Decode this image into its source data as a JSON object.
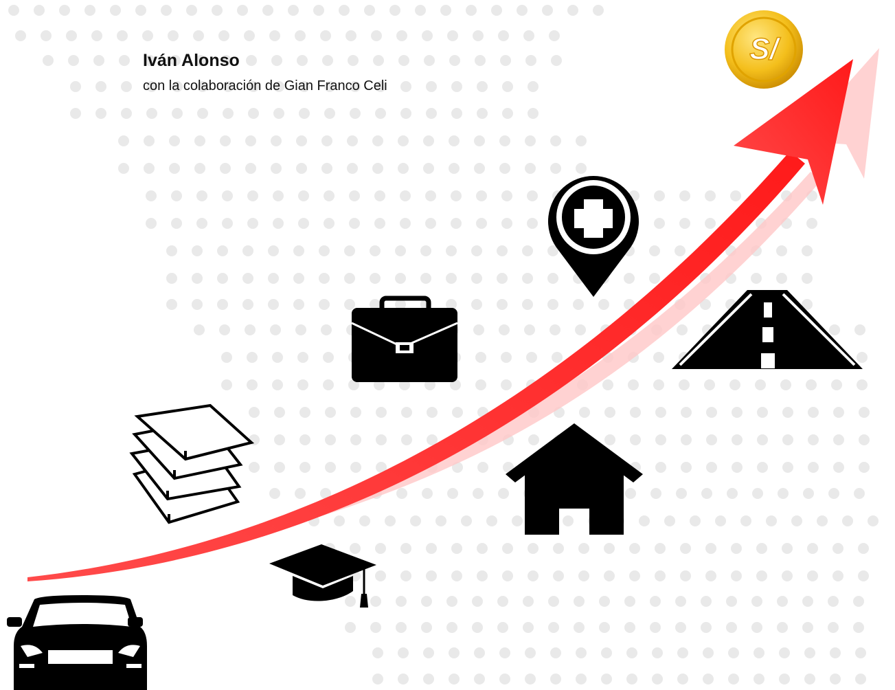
{
  "author": "Iván Alonso",
  "collaborator": "con la colaboración de Gian Franco Celi",
  "coin_symbol": "S/"
}
